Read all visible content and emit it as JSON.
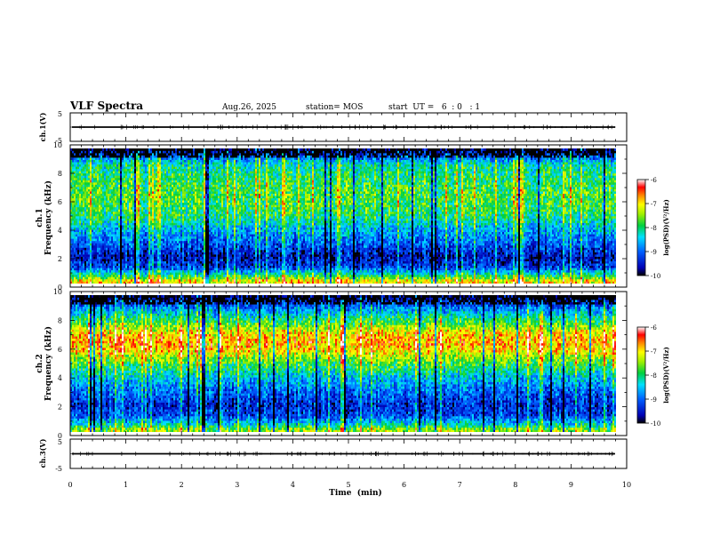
{
  "header": {
    "title": "VLF Spectra",
    "date": "Aug.26, 2025",
    "station": "station= MOS",
    "start_ut": "start  UT =   6  : 0   : 1"
  },
  "chart_data": [
    {
      "type": "line",
      "panel": "ch1-waveform",
      "ylabel": "ch.1(V)",
      "ylim": [
        -5,
        5
      ],
      "yticks": [
        "5",
        "-5"
      ],
      "xlim": [
        0,
        10
      ],
      "level": 0
    },
    {
      "type": "heatmap",
      "panel": "ch1-spectrogram",
      "ylabel_line1": "ch.1",
      "ylabel_line2": "Frequency (kHz)",
      "ylim": [
        0,
        10
      ],
      "yticks": [
        "0",
        "2",
        "4",
        "6",
        "8",
        "10"
      ],
      "xlim": [
        0,
        10
      ],
      "colorbar": {
        "label": "log(PSD)(V²/Hz)",
        "range": [
          -10,
          -6
        ],
        "ticks": [
          "-6",
          "-7",
          "-8",
          "-9",
          "-10"
        ]
      },
      "intensity_profile": [
        {
          "f": 0.2,
          "v": -7.0
        },
        {
          "f": 0.6,
          "v": -8.0
        },
        {
          "f": 1.2,
          "v": -9.2
        },
        {
          "f": 2.0,
          "v": -9.6
        },
        {
          "f": 3.0,
          "v": -9.0
        },
        {
          "f": 4.0,
          "v": -8.6
        },
        {
          "f": 5.0,
          "v": -8.0
        },
        {
          "f": 6.0,
          "v": -7.8
        },
        {
          "f": 7.0,
          "v": -7.8
        },
        {
          "f": 8.0,
          "v": -8.0
        },
        {
          "f": 8.8,
          "v": -8.2
        },
        {
          "f": 9.4,
          "v": -9.0
        },
        {
          "f": 9.9,
          "v": -9.8
        }
      ]
    },
    {
      "type": "heatmap",
      "panel": "ch2-spectrogram",
      "ylabel_line1": "ch.2",
      "ylabel_line2": "Frequency (kHz)",
      "ylim": [
        0,
        10
      ],
      "yticks": [
        "0",
        "2",
        "4",
        "6",
        "8",
        "10"
      ],
      "xlim": [
        0,
        10
      ],
      "colorbar": {
        "label": "log(PSD)(V²/Hz)",
        "range": [
          -10,
          -6
        ],
        "ticks": [
          "-6",
          "-7",
          "-8",
          "-9",
          "-10"
        ]
      },
      "intensity_profile": [
        {
          "f": 0.2,
          "v": -7.5
        },
        {
          "f": 0.6,
          "v": -8.4
        },
        {
          "f": 1.2,
          "v": -9.2
        },
        {
          "f": 2.0,
          "v": -9.4
        },
        {
          "f": 3.0,
          "v": -9.0
        },
        {
          "f": 4.0,
          "v": -8.5
        },
        {
          "f": 5.0,
          "v": -7.8
        },
        {
          "f": 6.0,
          "v": -7.0
        },
        {
          "f": 6.6,
          "v": -6.8
        },
        {
          "f": 7.2,
          "v": -7.0
        },
        {
          "f": 8.0,
          "v": -7.8
        },
        {
          "f": 9.0,
          "v": -8.8
        },
        {
          "f": 9.9,
          "v": -9.8
        }
      ]
    },
    {
      "type": "line",
      "panel": "ch3-waveform",
      "ylabel": "ch.3(V)",
      "ylim": [
        -5,
        5
      ],
      "yticks": [
        "5",
        "-5"
      ],
      "xlim": [
        0,
        10
      ],
      "level": 0,
      "xlabel": "Time  (min)",
      "xticks": [
        "0",
        "1",
        "2",
        "3",
        "4",
        "5",
        "6",
        "7",
        "8",
        "9",
        "10"
      ]
    }
  ]
}
